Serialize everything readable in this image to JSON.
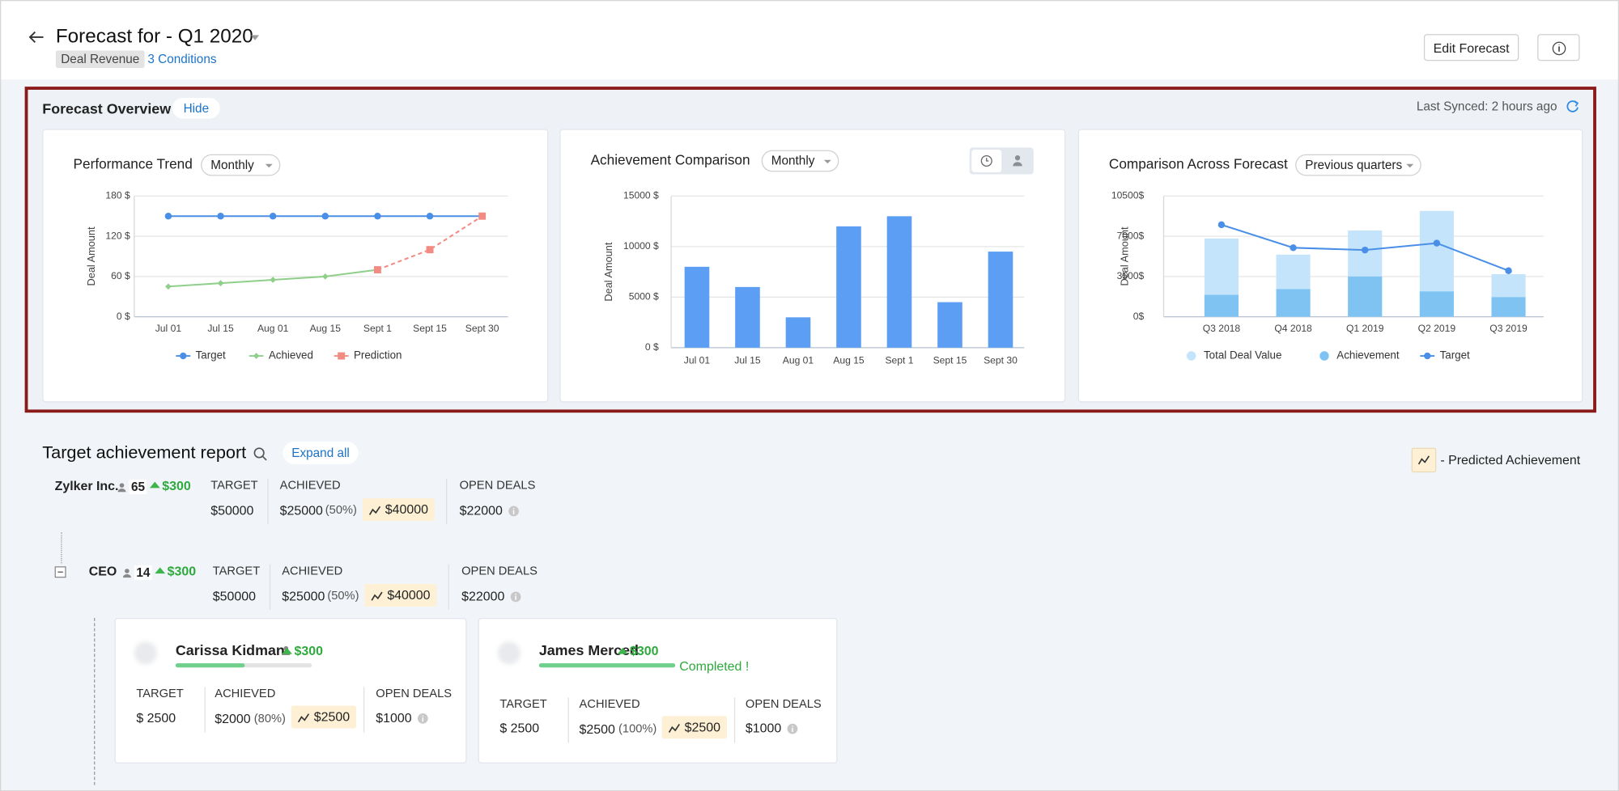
{
  "header": {
    "title": "Forecast for - Q1 2020",
    "tag": "Deal Revenue",
    "conditions": "3 Conditions",
    "edit_button": "Edit Forecast"
  },
  "overview": {
    "title": "Forecast Overview",
    "hide": "Hide",
    "last_synced": "Last Synced: 2 hours ago"
  },
  "chart_data": [
    {
      "type": "line",
      "title": "Performance Trend",
      "dropdown": "Monthly",
      "y_label": "Deal Amount",
      "categories": [
        "Jul 01",
        "Jul 15",
        "Aug 01",
        "Aug 15",
        "Sept 1",
        "Sept 15",
        "Sept 30"
      ],
      "ylim": [
        0,
        180
      ],
      "yticks": [
        {
          "value": 0,
          "label": "0 $"
        },
        {
          "value": 60,
          "label": "60 $"
        },
        {
          "value": 120,
          "label": "120 $"
        },
        {
          "value": 180,
          "label": "180 $"
        }
      ],
      "grid": true,
      "legend": "bottom",
      "series": [
        {
          "name": "Target",
          "color": "#4a8fe7",
          "marker": "circle",
          "values": [
            150,
            150,
            150,
            150,
            150,
            150,
            150
          ]
        },
        {
          "name": "Achieved",
          "color": "#8fcf8a",
          "marker": "diamond",
          "values": [
            45,
            50,
            55,
            60,
            70,
            null,
            null
          ]
        },
        {
          "name": "Prediction",
          "color": "#f28b82",
          "marker": "square",
          "line_style": "dashed",
          "values": [
            null,
            null,
            null,
            null,
            70,
            100,
            150
          ]
        }
      ]
    },
    {
      "type": "bar",
      "title": "Achievement Comparison",
      "dropdown": "Monthly",
      "y_label": "Deal Amount",
      "categories": [
        "Jul 01",
        "Jul 15",
        "Aug 01",
        "Aug 15",
        "Sept 1",
        "Sept 15",
        "Sept 30"
      ],
      "values": [
        8000,
        6000,
        3000,
        12000,
        13000,
        4500,
        9500
      ],
      "color": "#5b9ef4",
      "ylim": [
        0,
        15000
      ],
      "yticks": [
        {
          "value": 0,
          "label": "0 $"
        },
        {
          "value": 5000,
          "label": "5000 $"
        },
        {
          "value": 10000,
          "label": "10000 $"
        },
        {
          "value": 15000,
          "label": "15000 $"
        }
      ],
      "grid": true
    },
    {
      "type": "combo",
      "title": "Comparison Across Forecast",
      "dropdown": "Previous quarters",
      "y_label": "Deal Amount",
      "categories": [
        "Q3 2018",
        "Q4 2018",
        "Q1 2019",
        "Q2 2019",
        "Q3 2019"
      ],
      "ylim": [
        0,
        10500
      ],
      "yticks": [
        {
          "value": 0,
          "label": "0$"
        },
        {
          "value": 3500,
          "label": "3500$"
        },
        {
          "value": 7000,
          "label": "7000$"
        },
        {
          "value": 10500,
          "label": "10500$"
        }
      ],
      "grid": true,
      "legend": "bottom",
      "series": [
        {
          "name": "Total Deal Value",
          "type": "bar",
          "color": "#c3e4fa",
          "values": [
            6800,
            5400,
            7500,
            9200,
            3700
          ]
        },
        {
          "name": "Achievement",
          "type": "bar",
          "color": "#7fc3f3",
          "values": [
            1900,
            2400,
            3500,
            2200,
            1700
          ]
        },
        {
          "name": "Target",
          "type": "line",
          "color": "#4a8fe7",
          "marker": "circle",
          "values": [
            8000,
            6000,
            5800,
            6400,
            4000
          ]
        }
      ]
    }
  ],
  "report": {
    "title": "Target achievement report",
    "expand_all": "Expand all",
    "legend": "- Predicted Achievement",
    "rows": [
      {
        "name": "Zylker Inc.",
        "members": 65,
        "change": "$300",
        "target_label": "TARGET",
        "target": "$50000",
        "achieved_label": "ACHIEVED",
        "achieved": "$25000",
        "achieved_pct": "(50%)",
        "predicted": "$40000",
        "open_label": "OPEN DEALS",
        "open": "$22000"
      },
      {
        "name": "CEO",
        "members": 14,
        "change": "$300",
        "target_label": "TARGET",
        "target": "$50000",
        "achieved_label": "ACHIEVED",
        "achieved": "$25000",
        "achieved_pct": "(50%)",
        "predicted": "$40000",
        "open_label": "OPEN DEALS",
        "open": "$22000"
      }
    ],
    "cards": [
      {
        "name": "Carissa Kidman",
        "change": "$300",
        "target_label": "TARGET",
        "target": "$ 2500",
        "achieved_label": "ACHIEVED",
        "achieved": "$2000",
        "achieved_pct": "(80%)",
        "predicted": "$2500",
        "open_label": "OPEN DEALS",
        "open": "$1000"
      },
      {
        "name": "James Merced",
        "change": "$300",
        "status": "Completed !",
        "target_label": "TARGET",
        "target": "$ 2500",
        "achieved_label": "ACHIEVED",
        "achieved": "$2500",
        "achieved_pct": "(100%)",
        "predicted": "$2500",
        "open_label": "OPEN DEALS",
        "open": "$1000"
      }
    ]
  }
}
